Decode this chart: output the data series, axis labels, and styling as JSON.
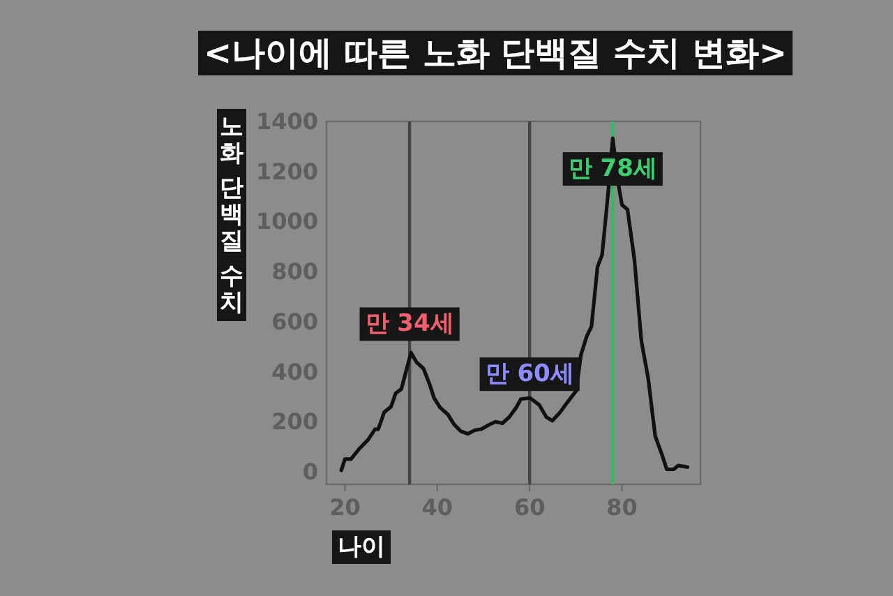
{
  "chart_data": {
    "type": "line",
    "title": "<나이에 따른 노화 단백질 수치 변화>",
    "xlabel": "나이",
    "ylabel": "노화 단백질 수치",
    "xlim": [
      16,
      97
    ],
    "ylim": [
      -50,
      1400
    ],
    "xticks": [
      20,
      40,
      60,
      80
    ],
    "yticks": [
      0,
      200,
      400,
      600,
      800,
      1000,
      1200,
      1400
    ],
    "grid": false,
    "series": [
      {
        "color": "#111111",
        "x": [
          19.2,
          20,
          21.3,
          23,
          25,
          26.5,
          27.2,
          28.5,
          30,
          31,
          32.2,
          34.3,
          35.5,
          37,
          38.3,
          39.3,
          40.6,
          42.3,
          43.6,
          45.1,
          46.6,
          48.1,
          49.6,
          51.1,
          52.6,
          54.1,
          55.6,
          57.1,
          58.1,
          60.1,
          62.1,
          63.6,
          64.9,
          66.6,
          68.1,
          70.1,
          71.1,
          72.4,
          73.4,
          74.7,
          75.7,
          77,
          78,
          79.2,
          80,
          81.2,
          82.7,
          84.2,
          85.7,
          87.2,
          88.7,
          89.7,
          91.2,
          92.2,
          94.2
        ],
        "values": [
          6,
          51,
          51,
          90,
          128,
          170,
          170,
          238,
          261,
          314,
          330,
          476,
          438,
          413,
          352,
          295,
          257,
          229,
          190,
          162,
          152,
          166,
          171,
          187,
          200,
          194,
          219,
          257,
          291,
          295,
          267,
          219,
          204,
          238,
          276,
          324,
          467,
          543,
          581,
          819,
          867,
          1114,
          1333,
          1152,
          1067,
          1048,
          848,
          524,
          371,
          143,
          67,
          10,
          10,
          25,
          19
        ]
      }
    ],
    "ref_lines": [
      {
        "axis": "x",
        "value": 34,
        "color": "#454545"
      },
      {
        "axis": "x",
        "value": 60,
        "color": "#454545"
      },
      {
        "axis": "x",
        "value": 78,
        "color": "#2fbf5a"
      }
    ],
    "annotations": [
      {
        "text": "만 34세",
        "x": 34,
        "y": 590
      },
      {
        "text": "만 60세",
        "x": 60,
        "y": 390
      },
      {
        "text": "만 78세",
        "x": 78,
        "y": 1210
      }
    ]
  }
}
